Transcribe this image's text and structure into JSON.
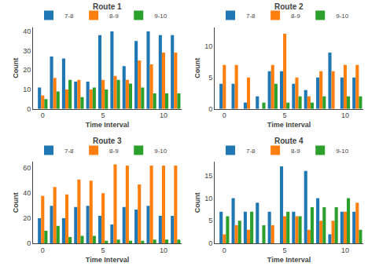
{
  "chart_data": [
    {
      "type": "bar",
      "title": "Route 1",
      "xlabel": "Time Interval",
      "ylabel": "Count",
      "x": [
        0,
        1,
        2,
        3,
        4,
        5,
        6,
        7,
        8,
        9,
        10,
        11
      ],
      "series": [
        {
          "name": "7-8",
          "color": "#1f77b4",
          "values": [
            11,
            27,
            26,
            14,
            14,
            38,
            40,
            22,
            35,
            40,
            38,
            38
          ]
        },
        {
          "name": "8-9",
          "color": "#ff7f0e",
          "values": [
            7,
            16,
            10,
            15,
            10,
            15,
            17,
            15,
            25,
            23,
            29,
            29
          ]
        },
        {
          "name": "9-10",
          "color": "#2ca02c",
          "values": [
            5,
            9,
            15,
            6,
            11,
            10,
            15,
            13,
            11,
            8,
            8,
            8
          ]
        }
      ],
      "xlim": [
        -0.8,
        11.5
      ],
      "xticks": [
        0,
        5,
        10
      ],
      "ylim": [
        0,
        42
      ],
      "yticks": [
        0,
        10,
        20,
        30,
        40
      ],
      "legend": "upper left",
      "grid": false
    },
    {
      "type": "bar",
      "title": "Route 2",
      "xlabel": "Time Interval",
      "ylabel": "Count",
      "x": [
        0,
        1,
        2,
        3,
        4,
        5,
        6,
        7,
        8,
        9,
        10,
        11
      ],
      "series": [
        {
          "name": "7-8",
          "color": "#1f77b4",
          "values": [
            4,
            4,
            1,
            2,
            6,
            6,
            4,
            3,
            5,
            9,
            5,
            5
          ]
        },
        {
          "name": "8-9",
          "color": "#ff7f0e",
          "values": [
            7,
            7,
            5,
            0,
            7,
            12,
            5,
            2,
            6,
            6,
            7,
            7
          ]
        },
        {
          "name": "9-10",
          "color": "#2ca02c",
          "values": [
            0,
            0,
            0,
            1,
            4,
            1,
            2,
            1,
            2,
            0,
            2,
            2
          ]
        }
      ],
      "xlim": [
        -0.8,
        11.5
      ],
      "xticks": [
        0,
        5,
        10
      ],
      "ylim": [
        0,
        13
      ],
      "yticks": [
        0,
        5,
        10
      ],
      "legend": "upper left",
      "grid": false
    },
    {
      "type": "bar",
      "title": "Route 3",
      "xlabel": "Time Interval",
      "ylabel": "Count",
      "x": [
        0,
        1,
        2,
        3,
        4,
        5,
        6,
        7,
        8,
        9,
        10,
        11
      ],
      "series": [
        {
          "name": "7-8",
          "color": "#1f77b4",
          "values": [
            20,
            30,
            20,
            29,
            30,
            22,
            15,
            29,
            27,
            30,
            22,
            22
          ]
        },
        {
          "name": "8-9",
          "color": "#ff7f0e",
          "values": [
            38,
            45,
            39,
            51,
            50,
            40,
            63,
            62,
            47,
            62,
            62,
            62
          ]
        },
        {
          "name": "9-10",
          "color": "#2ca02c",
          "values": [
            10,
            14,
            5,
            6,
            6,
            2,
            3,
            2,
            2,
            3,
            3,
            3
          ]
        }
      ],
      "xlim": [
        -0.8,
        11.5
      ],
      "xticks": [
        0,
        5,
        10
      ],
      "ylim": [
        0,
        65
      ],
      "yticks": [
        0,
        20,
        40,
        60
      ],
      "legend": "upper left",
      "grid": false
    },
    {
      "type": "bar",
      "title": "Route 4",
      "xlabel": "Time Interval",
      "ylabel": "Count",
      "x": [
        0,
        1,
        2,
        3,
        4,
        5,
        6,
        7,
        8,
        9,
        10,
        11
      ],
      "series": [
        {
          "name": "7-8",
          "color": "#1f77b4",
          "values": [
            7,
            10,
            7,
            9,
            7,
            17,
            7,
            16,
            10,
            2,
            7,
            7
          ]
        },
        {
          "name": "8-9",
          "color": "#ff7f0e",
          "values": [
            2,
            4,
            3,
            0,
            4,
            6,
            6,
            3,
            5,
            5,
            7,
            9
          ]
        },
        {
          "name": "9-10",
          "color": "#2ca02c",
          "values": [
            6,
            5,
            7,
            4,
            0,
            7,
            6,
            8,
            8,
            8,
            10,
            3
          ]
        }
      ],
      "xlim": [
        -0.8,
        11.5
      ],
      "xticks": [
        0,
        5,
        10
      ],
      "ylim": [
        0,
        18
      ],
      "yticks": [
        0,
        5,
        10,
        15
      ],
      "legend": "upper left",
      "grid": false
    }
  ]
}
